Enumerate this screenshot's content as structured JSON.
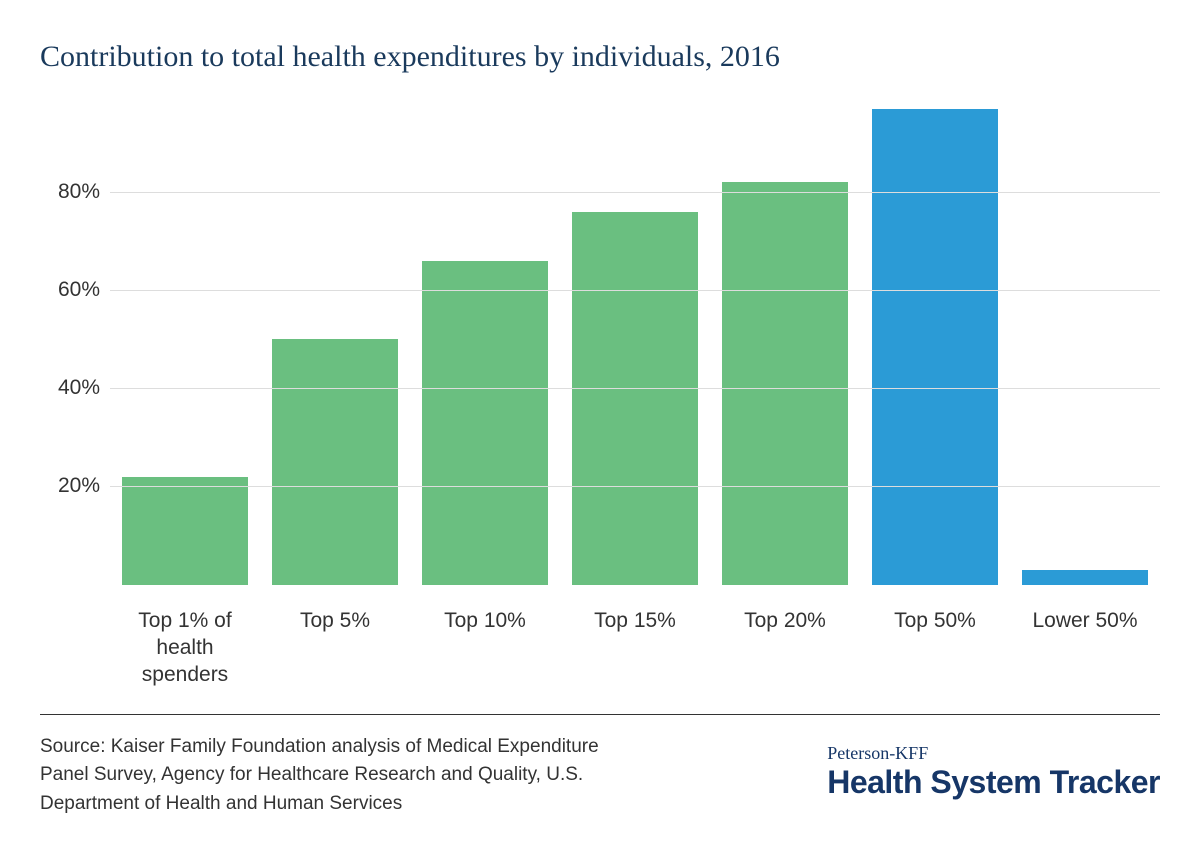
{
  "chart": {
    "type": "bar",
    "title": "Contribution to total health expenditures by individuals, 2016",
    "title_color": "#1a3a5c",
    "title_fontsize": 30,
    "background_color": "#ffffff",
    "grid_color": "#dddddd",
    "ylim": [
      0,
      100
    ],
    "yticks": [
      20,
      40,
      60,
      80
    ],
    "ytick_suffix": "%",
    "axis_label_fontsize": 21,
    "axis_label_color": "#333333",
    "bar_width_ratio": 0.84,
    "categories": [
      "Top 1% of health spenders",
      "Top 5%",
      "Top 10%",
      "Top 15%",
      "Top 20%",
      "Top 50%",
      "Lower 50%"
    ],
    "values": [
      22,
      50,
      66,
      76,
      82,
      97,
      3
    ],
    "bar_colors": [
      "#6abf80",
      "#6abf80",
      "#6abf80",
      "#6abf80",
      "#6abf80",
      "#2b9bd6",
      "#2b9bd6"
    ]
  },
  "footer": {
    "source_text": "Source: Kaiser Family Foundation analysis of Medical Expenditure Panel Survey, Agency for Healthcare Research and Quality, U.S. Department of Health and Human Services",
    "source_fontsize": 19,
    "source_color": "#333333",
    "rule_color": "#333333",
    "brand_small": "Peterson-KFF",
    "brand_large": "Health System Tracker",
    "brand_color": "#163667",
    "brand_small_fontsize": 18,
    "brand_large_fontsize": 32
  }
}
